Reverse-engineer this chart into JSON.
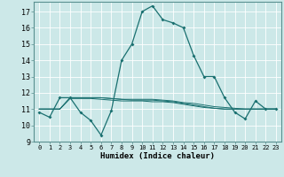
{
  "xlabel": "Humidex (Indice chaleur)",
  "background_color": "#cce8e8",
  "grid_color": "#b0d4d4",
  "line_color": "#1a7070",
  "xlim": [
    -0.5,
    23.5
  ],
  "ylim": [
    9,
    17.6
  ],
  "yticks": [
    9,
    10,
    11,
    12,
    13,
    14,
    15,
    16,
    17
  ],
  "xticks": [
    0,
    1,
    2,
    3,
    4,
    5,
    6,
    7,
    8,
    9,
    10,
    11,
    12,
    13,
    14,
    15,
    16,
    17,
    18,
    19,
    20,
    21,
    22,
    23
  ],
  "series_main": [
    10.8,
    10.5,
    11.7,
    11.7,
    10.8,
    10.3,
    9.4,
    10.9,
    14.0,
    15.0,
    17.0,
    17.35,
    16.5,
    16.3,
    16.0,
    14.3,
    13.0,
    13.0,
    11.7,
    10.8,
    10.4,
    11.5,
    11.0,
    11.0
  ],
  "series_flat": [
    [
      11.0,
      11.0,
      11.0,
      11.7,
      11.7,
      11.7,
      11.7,
      11.65,
      11.6,
      11.6,
      11.6,
      11.6,
      11.55,
      11.5,
      11.4,
      11.35,
      11.25,
      11.15,
      11.1,
      11.05,
      11.0,
      11.0,
      11.0,
      11.0
    ],
    [
      11.0,
      11.0,
      11.0,
      11.7,
      11.7,
      11.7,
      11.7,
      11.65,
      11.6,
      11.55,
      11.55,
      11.55,
      11.5,
      11.45,
      11.35,
      11.25,
      11.15,
      11.05,
      11.0,
      11.0,
      11.0,
      11.0,
      11.0,
      11.0
    ],
    [
      11.0,
      11.0,
      11.0,
      11.65,
      11.65,
      11.65,
      11.6,
      11.55,
      11.5,
      11.5,
      11.5,
      11.45,
      11.45,
      11.4,
      11.3,
      11.2,
      11.1,
      11.05,
      11.0,
      11.0,
      11.0,
      11.0,
      11.0,
      11.0
    ]
  ]
}
